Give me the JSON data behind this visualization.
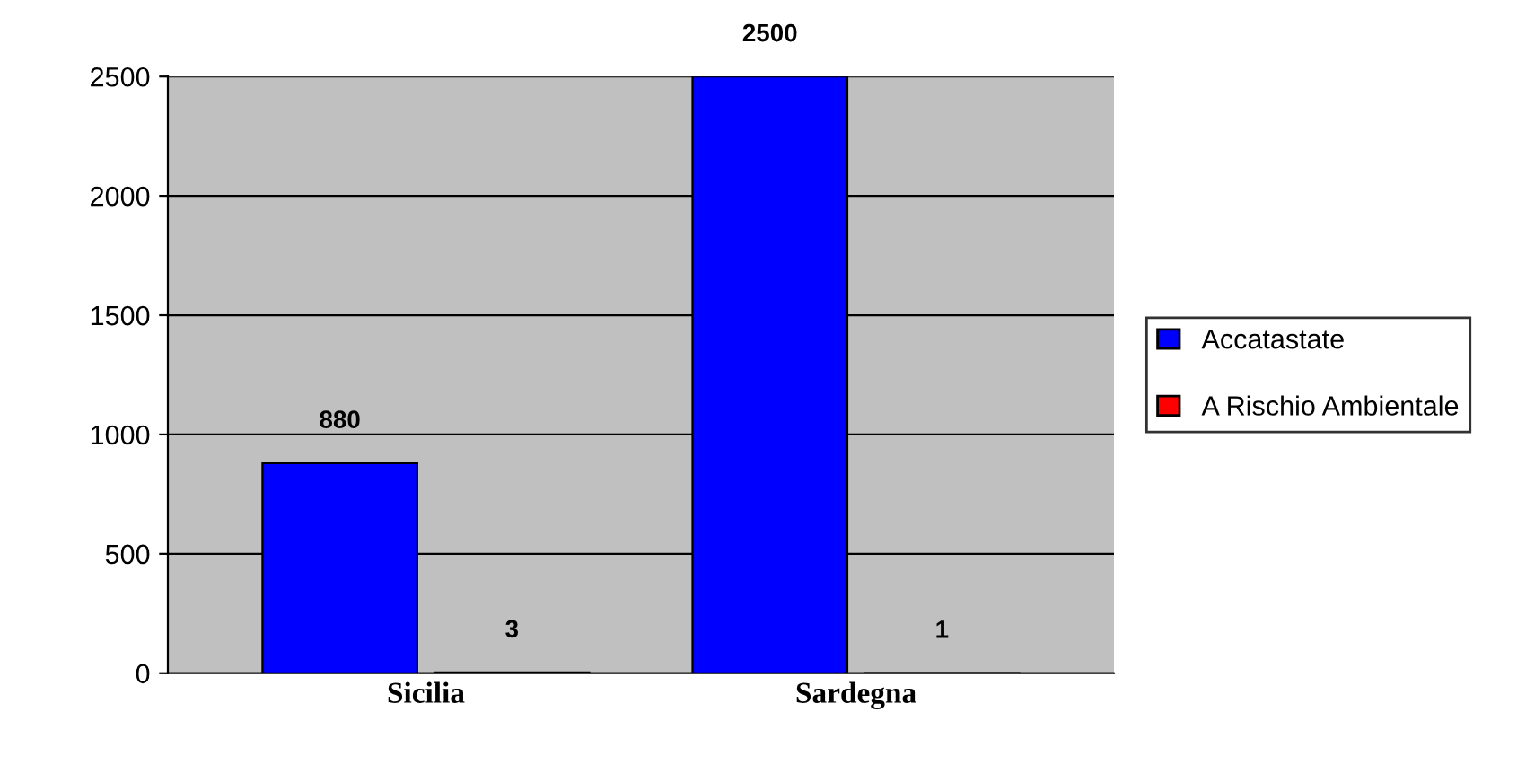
{
  "chart_data": {
    "type": "bar",
    "categories": [
      "Sicilia",
      "Sardegna"
    ],
    "series": [
      {
        "name": "Accatastate",
        "color": "#0000ff",
        "values": [
          880,
          2500
        ]
      },
      {
        "name": "A Rischio Ambientale",
        "color": "#ff0000",
        "values": [
          3,
          1
        ]
      }
    ],
    "ylim": [
      0,
      2500
    ],
    "yticks": [
      0,
      500,
      1000,
      1500,
      2000,
      2500
    ],
    "grid": "y",
    "legend": "right",
    "data_labels": true
  }
}
